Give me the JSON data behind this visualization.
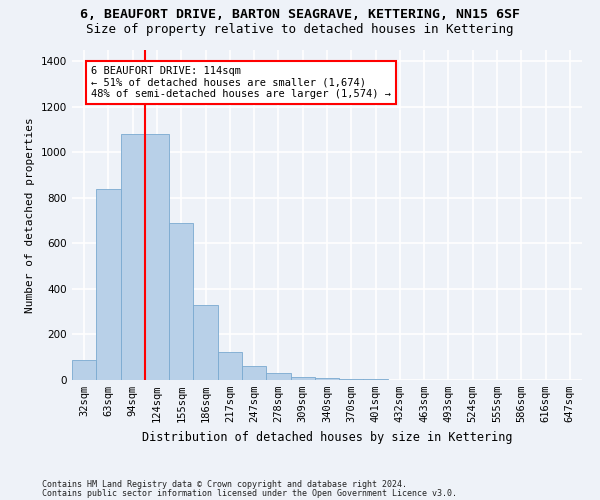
{
  "title1": "6, BEAUFORT DRIVE, BARTON SEAGRAVE, KETTERING, NN15 6SF",
  "title2": "Size of property relative to detached houses in Kettering",
  "xlabel": "Distribution of detached houses by size in Kettering",
  "ylabel": "Number of detached properties",
  "categories": [
    "32sqm",
    "63sqm",
    "94sqm",
    "124sqm",
    "155sqm",
    "186sqm",
    "217sqm",
    "247sqm",
    "278sqm",
    "309sqm",
    "340sqm",
    "370sqm",
    "401sqm",
    "432sqm",
    "463sqm",
    "493sqm",
    "524sqm",
    "555sqm",
    "586sqm",
    "616sqm",
    "647sqm"
  ],
  "values": [
    90,
    840,
    1080,
    1080,
    690,
    330,
    125,
    60,
    30,
    15,
    10,
    5,
    3,
    2,
    1,
    1,
    0,
    0,
    0,
    0,
    0
  ],
  "bar_color": "#b8d0e8",
  "bar_edge_color": "#7aaad0",
  "red_line_x": 2.5,
  "annotation_line1": "6 BEAUFORT DRIVE: 114sqm",
  "annotation_line2": "← 51% of detached houses are smaller (1,674)",
  "annotation_line3": "48% of semi-detached houses are larger (1,574) →",
  "ylim": [
    0,
    1450
  ],
  "yticks": [
    0,
    200,
    400,
    600,
    800,
    1000,
    1200,
    1400
  ],
  "footer1": "Contains HM Land Registry data © Crown copyright and database right 2024.",
  "footer2": "Contains public sector information licensed under the Open Government Licence v3.0.",
  "background_color": "#eef2f8",
  "grid_color": "#ffffff",
  "title1_fontsize": 9.5,
  "title2_fontsize": 9,
  "tick_fontsize": 7.5,
  "ylabel_fontsize": 8,
  "xlabel_fontsize": 8.5,
  "annot_fontsize": 7.5,
  "footer_fontsize": 6
}
